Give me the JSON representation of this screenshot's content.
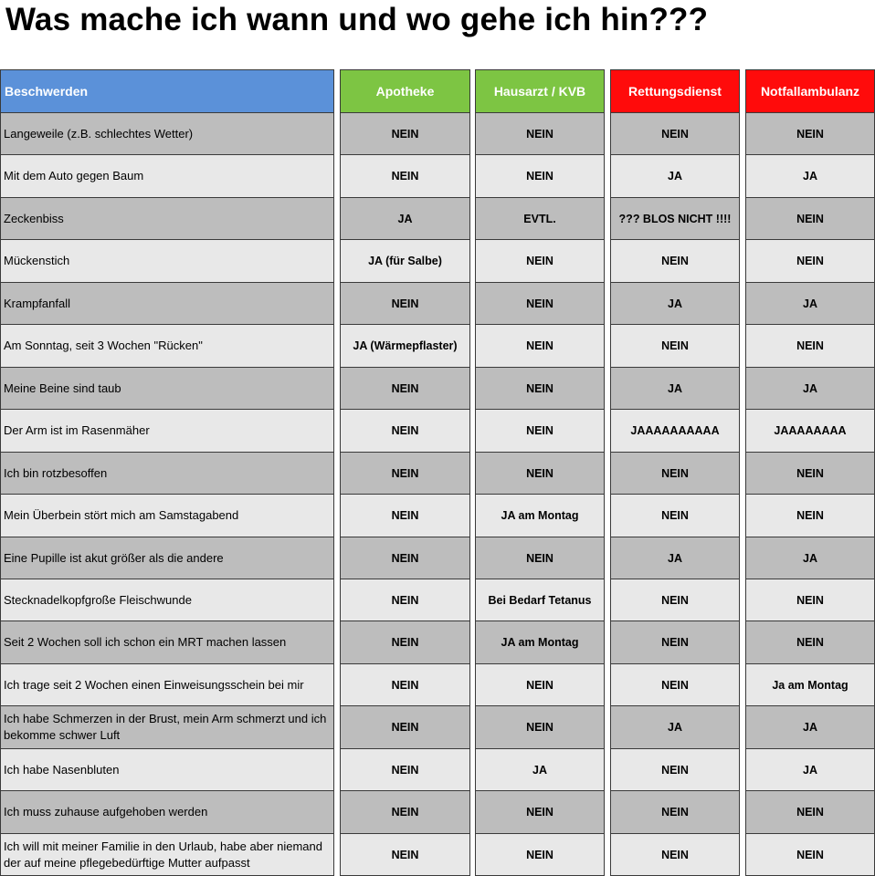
{
  "title": "Was mache ich wann und wo gehe ich hin???",
  "colors": {
    "header_beschwerden": "#5b91d9",
    "header_apotheke": "#7dc543",
    "header_hausarzt": "#7dc543",
    "header_rettungsdienst": "#ff0b0b",
    "header_notfallambulanz": "#ff0b0b",
    "row_dark": "#bdbdbd",
    "row_light": "#e8e8e8"
  },
  "headers": [
    "Beschwerden",
    "Apotheke",
    "Hausarzt / KVB",
    "Rettungsdienst",
    "Notfallambulanz"
  ],
  "rows": [
    {
      "label": "Langeweile (z.B. schlechtes Wetter)",
      "values": [
        "NEIN",
        "NEIN",
        "NEIN",
        "NEIN"
      ]
    },
    {
      "label": "Mit dem Auto gegen Baum",
      "values": [
        "NEIN",
        "NEIN",
        "JA",
        "JA"
      ]
    },
    {
      "label": "Zeckenbiss",
      "values": [
        "JA",
        "EVTL.",
        "??? BLOS NICHT !!!!",
        "NEIN"
      ]
    },
    {
      "label": "Mückenstich",
      "values": [
        "JA (für Salbe)",
        "NEIN",
        "NEIN",
        "NEIN"
      ]
    },
    {
      "label": "Krampfanfall",
      "values": [
        "NEIN",
        "NEIN",
        "JA",
        "JA"
      ]
    },
    {
      "label": "Am Sonntag, seit 3 Wochen \"Rücken\"",
      "values": [
        "JA  (Wärmepflaster)",
        "NEIN",
        "NEIN",
        "NEIN"
      ]
    },
    {
      "label": "Meine Beine sind taub",
      "values": [
        "NEIN",
        "NEIN",
        "JA",
        "JA"
      ]
    },
    {
      "label": "Der Arm ist im Rasenmäher",
      "values": [
        "NEIN",
        "NEIN",
        "JAAAAAAAAAA",
        "JAAAAAAAA"
      ]
    },
    {
      "label": "Ich bin rotzbesoffen",
      "values": [
        "NEIN",
        "NEIN",
        "NEIN",
        "NEIN"
      ]
    },
    {
      "label": "Mein Überbein stört mich am Samstagabend",
      "values": [
        "NEIN",
        "JA am Montag",
        "NEIN",
        "NEIN"
      ]
    },
    {
      "label": "Eine Pupille ist akut größer als die andere",
      "values": [
        "NEIN",
        "NEIN",
        "JA",
        "JA"
      ]
    },
    {
      "label": "Stecknadelkopfgroße Fleischwunde",
      "values": [
        "NEIN",
        "Bei Bedarf Tetanus",
        "NEIN",
        "NEIN"
      ]
    },
    {
      "label": "Seit 2 Wochen soll ich schon ein MRT machen lassen",
      "values": [
        "NEIN",
        "JA am Montag",
        "NEIN",
        "NEIN"
      ]
    },
    {
      "label": "Ich trage seit 2 Wochen einen Einweisungsschein bei mir",
      "values": [
        "NEIN",
        "NEIN",
        "NEIN",
        "Ja am Montag"
      ]
    },
    {
      "label": "Ich habe Schmerzen in der Brust, mein Arm schmerzt und ich bekomme schwer Luft",
      "values": [
        "NEIN",
        "NEIN",
        "JA",
        "JA"
      ]
    },
    {
      "label": "Ich habe Nasenbluten",
      "values": [
        "NEIN",
        "JA",
        "NEIN",
        "JA"
      ]
    },
    {
      "label": "Ich muss zuhause aufgehoben werden",
      "values": [
        "NEIN",
        "NEIN",
        "NEIN",
        "NEIN"
      ]
    },
    {
      "label": "Ich will mit meiner Familie in den Urlaub, habe aber niemand der auf meine pflegebedürftige Mutter aufpasst",
      "values": [
        "NEIN",
        "NEIN",
        "NEIN",
        "NEIN"
      ]
    }
  ]
}
